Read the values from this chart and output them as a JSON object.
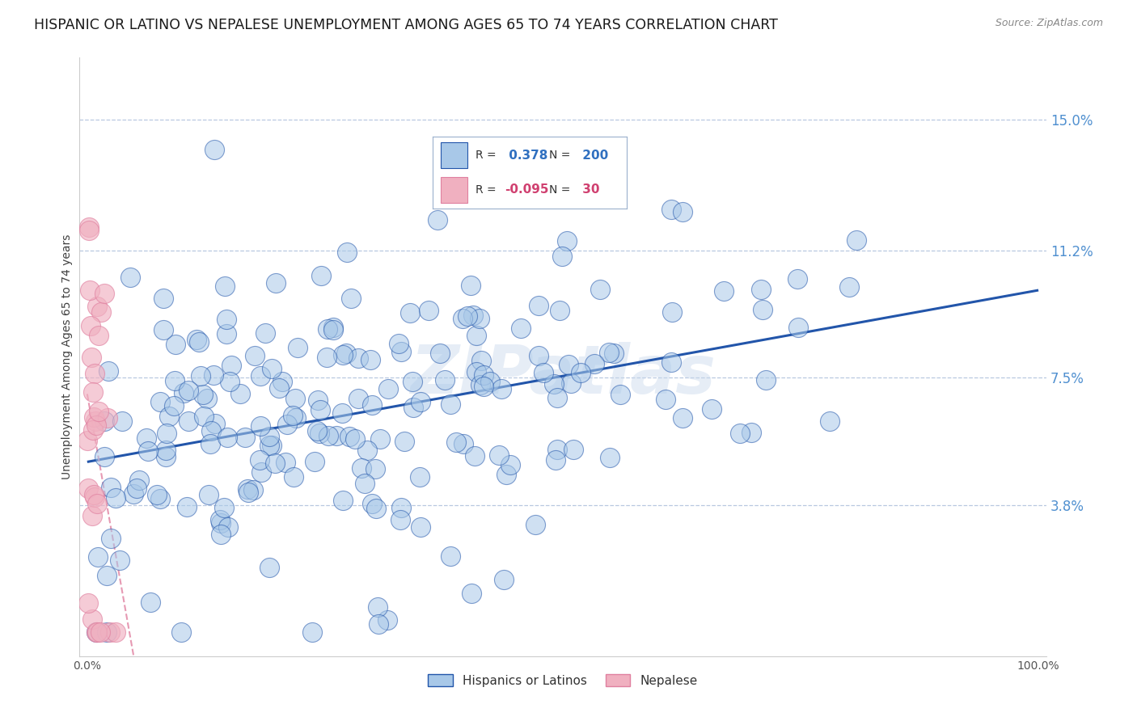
{
  "title": "HISPANIC OR LATINO VS NEPALESE UNEMPLOYMENT AMONG AGES 65 TO 74 YEARS CORRELATION CHART",
  "source": "Source: ZipAtlas.com",
  "ylabel": "Unemployment Among Ages 65 to 74 years",
  "legend_labels": [
    "Hispanics or Latinos",
    "Nepalese"
  ],
  "r_hispanic": 0.378,
  "n_hispanic": 200,
  "r_nepalese": -0.095,
  "n_nepalese": 30,
  "xlim": [
    0.0,
    1.0
  ],
  "ylim": [
    0.0,
    0.168
  ],
  "yticks": [
    0.038,
    0.075,
    0.112,
    0.15
  ],
  "ytick_labels": [
    "3.8%",
    "7.5%",
    "11.2%",
    "15.0%"
  ],
  "xtick_labels_show": [
    "0.0%",
    "100.0%"
  ],
  "color_hispanic": "#a8c8e8",
  "color_hispanic_line": "#2255aa",
  "color_nepalese": "#f0b0c0",
  "color_nepalese_line": "#e080a0",
  "background_color": "#ffffff",
  "grid_color": "#b8c8e0",
  "title_fontsize": 12.5,
  "tick_fontsize": 10,
  "legend_r_color_hispanic": "#3070c0",
  "legend_r_color_nepalese": "#d04070",
  "watermark_text": "ZIPatlas",
  "watermark_color": "#c8d8ec",
  "seed": 1234
}
